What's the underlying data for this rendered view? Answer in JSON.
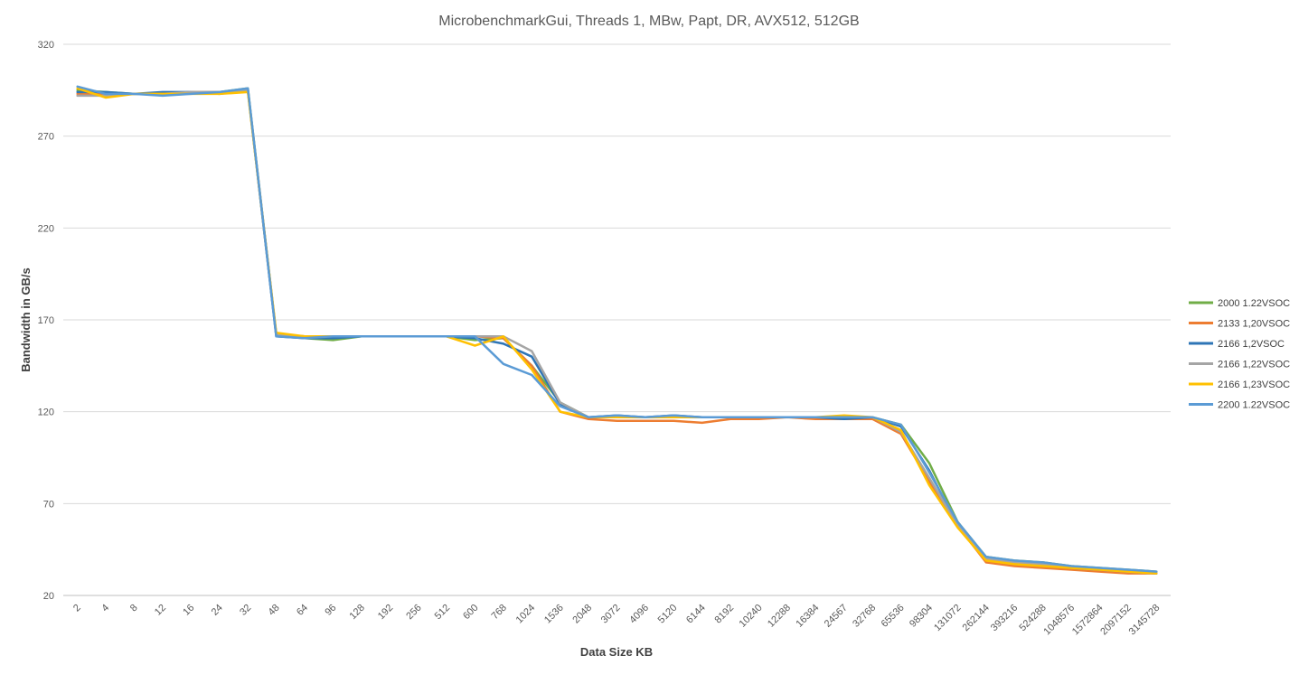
{
  "chart_data": {
    "type": "line",
    "title": "MicrobenchmarkGui, Threads 1, MBw, Papt, DR, AVX512, 512GB",
    "xlabel": "Data Size KB",
    "ylabel": "Bandwidth in GB/s",
    "ylim": [
      20,
      320
    ],
    "yticks": [
      20,
      70,
      120,
      170,
      220,
      270,
      320
    ],
    "grid": true,
    "legend_position": "right",
    "categories": [
      "2",
      "4",
      "8",
      "12",
      "16",
      "24",
      "32",
      "48",
      "64",
      "96",
      "128",
      "192",
      "256",
      "512",
      "600",
      "768",
      "1024",
      "1536",
      "2048",
      "3072",
      "4096",
      "5120",
      "6144",
      "8192",
      "10240",
      "12288",
      "16384",
      "24567",
      "32768",
      "65536",
      "98304",
      "131072",
      "262144",
      "393216",
      "524288",
      "1048576",
      "1572864",
      "2097152",
      "3145728"
    ],
    "series": [
      {
        "name": "2000 1.22VSOC",
        "color": "#70ad47",
        "values": [
          295,
          294,
          293,
          293,
          294,
          294,
          296,
          162,
          160,
          159,
          161,
          161,
          161,
          161,
          159,
          160,
          145,
          125,
          117,
          117,
          117,
          117,
          117,
          117,
          117,
          117,
          117,
          117,
          117,
          113,
          92,
          60,
          41,
          39,
          38,
          36,
          35,
          34,
          33
        ]
      },
      {
        "name": "2133 1,20VSOC",
        "color": "#ed7d31",
        "values": [
          293,
          293,
          293,
          293,
          294,
          294,
          295,
          162,
          161,
          161,
          161,
          161,
          161,
          161,
          161,
          160,
          145,
          120,
          116,
          115,
          115,
          115,
          114,
          116,
          116,
          117,
          116,
          116,
          116,
          108,
          82,
          58,
          38,
          36,
          35,
          34,
          33,
          32,
          32
        ]
      },
      {
        "name": "2166 1,2VSOC",
        "color": "#2e75b6",
        "values": [
          294,
          294,
          293,
          294,
          294,
          293,
          295,
          161,
          160,
          160,
          161,
          161,
          161,
          161,
          160,
          157,
          150,
          124,
          117,
          118,
          117,
          118,
          117,
          117,
          117,
          117,
          117,
          116,
          117,
          112,
          88,
          58,
          40,
          38,
          37,
          35,
          34,
          33,
          32
        ]
      },
      {
        "name": "2166 1,22VSOC",
        "color": "#a5a5a5",
        "values": [
          292,
          292,
          293,
          293,
          294,
          294,
          295,
          162,
          161,
          161,
          161,
          161,
          161,
          161,
          161,
          161,
          153,
          125,
          117,
          117,
          117,
          117,
          117,
          117,
          117,
          117,
          117,
          117,
          117,
          109,
          84,
          58,
          40,
          38,
          37,
          35,
          34,
          33,
          32
        ]
      },
      {
        "name": "2166 1,23VSOC",
        "color": "#ffc000",
        "values": [
          296,
          291,
          293,
          293,
          293,
          293,
          294,
          163,
          161,
          161,
          161,
          161,
          161,
          161,
          156,
          161,
          143,
          120,
          117,
          117,
          117,
          117,
          117,
          117,
          117,
          117,
          117,
          118,
          117,
          110,
          80,
          57,
          39,
          37,
          36,
          35,
          34,
          33,
          32
        ]
      },
      {
        "name": "2200 1.22VSOC",
        "color": "#5b9bd5",
        "values": [
          297,
          293,
          293,
          292,
          293,
          294,
          296,
          161,
          160,
          161,
          161,
          161,
          161,
          161,
          161,
          146,
          140,
          123,
          117,
          118,
          117,
          118,
          117,
          117,
          117,
          117,
          117,
          117,
          117,
          113,
          87,
          60,
          41,
          39,
          38,
          36,
          35,
          34,
          33
        ]
      }
    ]
  }
}
